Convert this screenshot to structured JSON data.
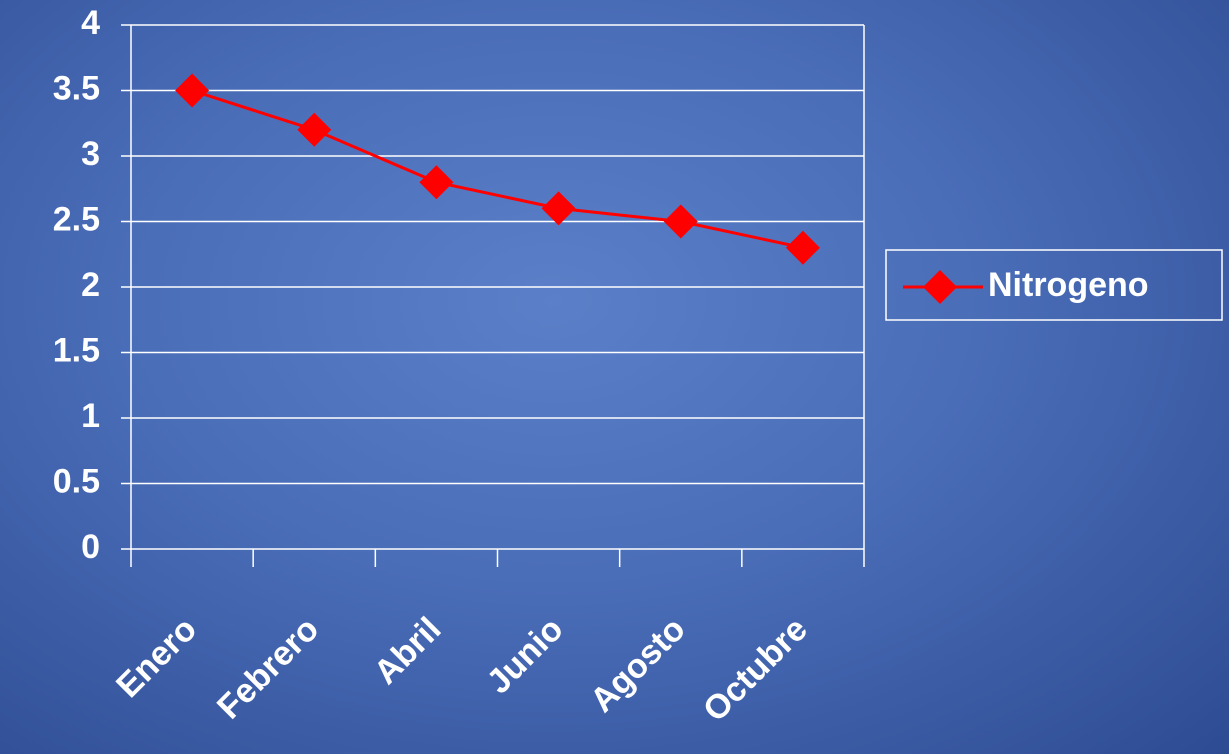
{
  "chart_data": {
    "type": "line",
    "categories": [
      "Enero",
      "Febrero",
      "Abril",
      "Junio",
      "Agosto",
      "Octubre"
    ],
    "series": [
      {
        "name": "Nitrogeno",
        "color": "#ff0000",
        "values": [
          3.5,
          3.2,
          2.8,
          2.6,
          2.5,
          2.3
        ]
      }
    ],
    "ylim": [
      0,
      4
    ],
    "yticks": [
      0,
      0.5,
      1,
      1.5,
      2,
      2.5,
      3,
      3.5,
      4
    ],
    "grid": true,
    "legend": "right"
  }
}
